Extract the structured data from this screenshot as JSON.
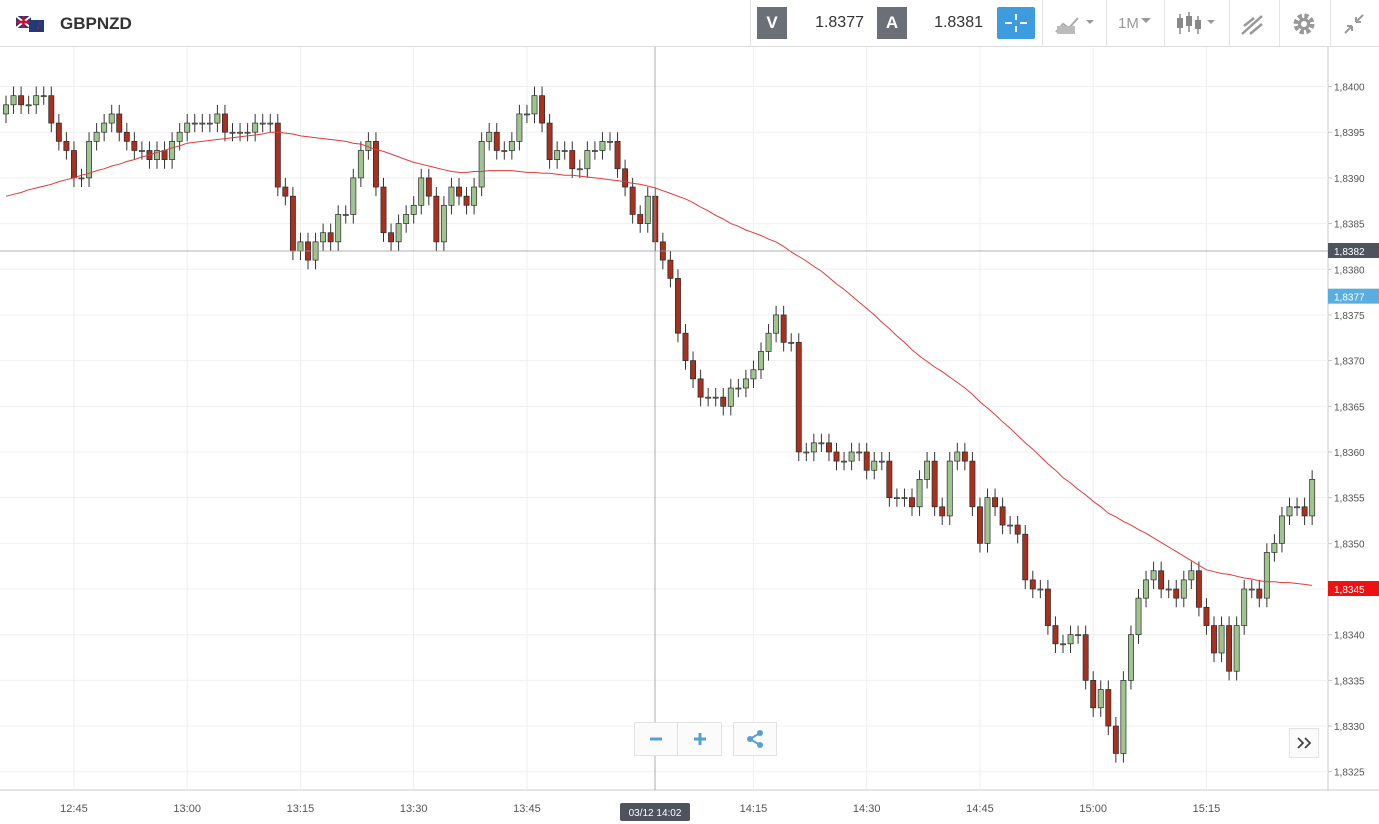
{
  "header": {
    "symbol": "GBPNZD",
    "bid_label": "V",
    "bid": 1.8377,
    "ask_label": "A",
    "ask": 1.8381,
    "timeframe": "1M"
  },
  "chart_data": {
    "type": "candlestick",
    "categories": [
      null,
      null,
      null,
      null,
      null,
      null,
      null,
      null,
      null,
      "12:45",
      null,
      null,
      null,
      null,
      null,
      null,
      null,
      null,
      null,
      null,
      null,
      null,
      null,
      null,
      "13:00",
      null,
      null,
      null,
      null,
      null,
      null,
      null,
      null,
      null,
      null,
      null,
      null,
      null,
      null,
      "13:15",
      null,
      null,
      null,
      null,
      null,
      null,
      null,
      null,
      null,
      null,
      null,
      null,
      null,
      null,
      "13:30",
      null,
      null,
      null,
      null,
      null,
      null,
      null,
      null,
      null,
      null,
      null,
      null,
      null,
      null,
      "13:45",
      null,
      null,
      null,
      null,
      null,
      null,
      null,
      null,
      null,
      null,
      null,
      null,
      null,
      null,
      null,
      null,
      null,
      null,
      null,
      null,
      null,
      null,
      null,
      null,
      null,
      null,
      null,
      null,
      null,
      "14:15",
      null,
      null,
      null,
      null,
      null,
      null,
      null,
      null,
      null,
      null,
      null,
      null,
      null,
      null,
      "14:30",
      null,
      null,
      null,
      null,
      null,
      null,
      null,
      null,
      null,
      null,
      null,
      null,
      null,
      null,
      "14:45",
      null,
      null,
      null,
      null,
      null,
      null,
      null,
      null,
      null,
      null,
      null,
      null,
      null,
      null,
      "15:00",
      null,
      null,
      null,
      null,
      null,
      null,
      null,
      null,
      null,
      null,
      null,
      null,
      null,
      null,
      "15:15",
      null,
      null,
      null,
      null,
      null,
      null,
      null,
      null,
      null,
      null,
      null,
      null,
      null,
      null
    ],
    "open": [
      1.8397,
      1.8398,
      1.8399,
      1.8398,
      1.8398,
      1.8399,
      1.8399,
      1.8396,
      1.8394,
      1.8393,
      1.839,
      1.839,
      1.8394,
      1.8395,
      1.8396,
      1.8397,
      1.8395,
      1.8394,
      1.8393,
      1.8393,
      1.8392,
      1.8393,
      1.8392,
      1.8394,
      1.8395,
      1.8396,
      1.8396,
      1.8396,
      1.8396,
      1.8397,
      1.8395,
      1.8395,
      1.8395,
      1.8395,
      1.8396,
      1.8396,
      1.8396,
      1.8389,
      1.8388,
      1.8382,
      1.8383,
      1.8381,
      1.8383,
      1.8384,
      1.8383,
      1.8386,
      1.8386,
      1.839,
      1.8393,
      1.8394,
      1.8389,
      1.8384,
      1.8383,
      1.8385,
      1.8386,
      1.8387,
      1.839,
      1.8388,
      1.8383,
      1.8387,
      1.8389,
      1.8388,
      1.8387,
      1.8389,
      1.8394,
      1.8395,
      1.8393,
      1.8393,
      1.8394,
      1.8397,
      1.8397,
      1.8399,
      1.8396,
      1.8392,
      1.8393,
      1.8393,
      1.8391,
      1.8391,
      1.8393,
      1.8393,
      1.8394,
      1.8394,
      1.8391,
      1.8389,
      1.8386,
      1.8385,
      1.8388,
      1.8383,
      1.8381,
      1.8379,
      1.8373,
      1.837,
      1.8368,
      1.8366,
      1.8366,
      1.8366,
      1.8365,
      1.8367,
      1.8367,
      1.8368,
      1.8369,
      1.8371,
      1.8373,
      1.8375,
      1.8372,
      1.8372,
      1.836,
      1.836,
      1.8361,
      1.8361,
      1.836,
      1.8359,
      1.8359,
      1.836,
      1.836,
      1.8358,
      1.8359,
      1.8359,
      1.8355,
      1.8355,
      1.8355,
      1.8354,
      1.8357,
      1.8359,
      1.8354,
      1.8353,
      1.8359,
      1.836,
      1.8359,
      1.8354,
      1.835,
      1.8355,
      1.8354,
      1.8352,
      1.8352,
      1.8351,
      1.8346,
      1.8345,
      1.8345,
      1.8341,
      1.8339,
      1.8339,
      1.834,
      1.834,
      1.8335,
      1.8332,
      1.8334,
      1.833,
      1.8327,
      1.8335,
      1.834,
      1.8344,
      1.8346,
      1.8347,
      1.8345,
      1.8345,
      1.8344,
      1.8346,
      1.8347,
      1.8343,
      1.8341,
      1.8338,
      1.8341,
      1.8336,
      1.8341,
      1.8345,
      1.8345,
      1.8344,
      1.8349,
      1.835,
      1.8353,
      1.8354,
      1.8354,
      1.8353
    ],
    "high": [
      1.8399,
      1.84,
      1.84,
      1.8399,
      1.84,
      1.84,
      1.84,
      1.8397,
      1.8395,
      1.8394,
      1.8391,
      1.8395,
      1.8396,
      1.8397,
      1.8398,
      1.8398,
      1.8396,
      1.8395,
      1.8394,
      1.8394,
      1.8394,
      1.8394,
      1.8395,
      1.8396,
      1.8397,
      1.8397,
      1.8397,
      1.8397,
      1.8398,
      1.8398,
      1.8396,
      1.8396,
      1.8396,
      1.8397,
      1.8397,
      1.8397,
      1.8397,
      1.839,
      1.8389,
      1.8384,
      1.8384,
      1.8384,
      1.8385,
      1.8385,
      1.8387,
      1.8387,
      1.8391,
      1.8394,
      1.8395,
      1.8395,
      1.839,
      1.8385,
      1.8386,
      1.8387,
      1.8388,
      1.8391,
      1.8391,
      1.8389,
      1.8388,
      1.839,
      1.839,
      1.8389,
      1.839,
      1.8395,
      1.8396,
      1.8396,
      1.8394,
      1.8395,
      1.8398,
      1.8398,
      1.84,
      1.84,
      1.8397,
      1.8394,
      1.8394,
      1.8394,
      1.8392,
      1.8394,
      1.8394,
      1.8395,
      1.8395,
      1.8395,
      1.8392,
      1.839,
      1.8387,
      1.8389,
      1.8389,
      1.8384,
      1.8382,
      1.838,
      1.8374,
      1.8371,
      1.8369,
      1.8367,
      1.8367,
      1.8367,
      1.8368,
      1.8368,
      1.8369,
      1.837,
      1.8372,
      1.8374,
      1.8376,
      1.8376,
      1.8373,
      1.8373,
      1.8361,
      1.8362,
      1.8362,
      1.8362,
      1.8361,
      1.836,
      1.8361,
      1.8361,
      1.8361,
      1.836,
      1.836,
      1.836,
      1.8356,
      1.8356,
      1.8356,
      1.8358,
      1.836,
      1.836,
      1.8355,
      1.836,
      1.8361,
      1.8361,
      1.836,
      1.8355,
      1.8356,
      1.8356,
      1.8355,
      1.8353,
      1.8353,
      1.8352,
      1.8347,
      1.8346,
      1.8346,
      1.8342,
      1.834,
      1.8341,
      1.8341,
      1.8341,
      1.8336,
      1.8335,
      1.8335,
      1.8331,
      1.8336,
      1.8341,
      1.8345,
      1.8347,
      1.8348,
      1.8348,
      1.8346,
      1.8346,
      1.8347,
      1.8348,
      1.8348,
      1.8344,
      1.8342,
      1.8342,
      1.8342,
      1.8342,
      1.8346,
      1.8346,
      1.8346,
      1.835,
      1.8351,
      1.8354,
      1.8355,
      1.8355,
      1.8355,
      1.8358
    ],
    "low": [
      1.8396,
      1.8397,
      1.8397,
      1.8397,
      1.8397,
      1.8398,
      1.8395,
      1.8393,
      1.8392,
      1.8389,
      1.8389,
      1.8389,
      1.8393,
      1.8394,
      1.8395,
      1.8394,
      1.8393,
      1.8392,
      1.8392,
      1.8391,
      1.8391,
      1.8391,
      1.8391,
      1.8393,
      1.8394,
      1.8395,
      1.8395,
      1.8395,
      1.8395,
      1.8394,
      1.8394,
      1.8394,
      1.8394,
      1.8394,
      1.8395,
      1.8395,
      1.8388,
      1.8387,
      1.8381,
      1.8381,
      1.838,
      1.838,
      1.8382,
      1.8382,
      1.8382,
      1.8385,
      1.8385,
      1.8389,
      1.8392,
      1.8388,
      1.8383,
      1.8382,
      1.8382,
      1.8384,
      1.8385,
      1.8386,
      1.8387,
      1.8382,
      1.8382,
      1.8386,
      1.8387,
      1.8386,
      1.8386,
      1.8388,
      1.8393,
      1.8392,
      1.8392,
      1.8392,
      1.8393,
      1.8396,
      1.8396,
      1.8395,
      1.8391,
      1.8391,
      1.8392,
      1.839,
      1.839,
      1.839,
      1.8392,
      1.8392,
      1.8393,
      1.839,
      1.8388,
      1.8385,
      1.8384,
      1.8384,
      1.8382,
      1.838,
      1.8378,
      1.8372,
      1.8369,
      1.8367,
      1.8365,
      1.8365,
      1.8365,
      1.8364,
      1.8364,
      1.8366,
      1.8366,
      1.8367,
      1.8368,
      1.837,
      1.8372,
      1.8371,
      1.8371,
      1.8359,
      1.8359,
      1.8359,
      1.836,
      1.8359,
      1.8358,
      1.8358,
      1.8358,
      1.8359,
      1.8357,
      1.8357,
      1.8358,
      1.8354,
      1.8354,
      1.8354,
      1.8353,
      1.8353,
      1.8356,
      1.8353,
      1.8352,
      1.8352,
      1.8358,
      1.8358,
      1.8353,
      1.8349,
      1.8349,
      1.8353,
      1.8351,
      1.8351,
      1.835,
      1.8345,
      1.8344,
      1.8344,
      1.834,
      1.8338,
      1.8338,
      1.8338,
      1.8339,
      1.8334,
      1.8331,
      1.8331,
      1.8329,
      1.8326,
      1.8326,
      1.8334,
      1.8339,
      1.8343,
      1.8345,
      1.8344,
      1.8344,
      1.8343,
      1.8343,
      1.8345,
      1.8342,
      1.834,
      1.8337,
      1.8337,
      1.8335,
      1.8335,
      1.834,
      1.8344,
      1.8343,
      1.8343,
      1.8348,
      1.8349,
      1.8352,
      1.8353,
      1.8352,
      1.8352
    ],
    "close": [
      1.8398,
      1.8399,
      1.8398,
      1.8398,
      1.8399,
      1.8399,
      1.8396,
      1.8394,
      1.8393,
      1.839,
      1.839,
      1.8394,
      1.8395,
      1.8396,
      1.8397,
      1.8395,
      1.8394,
      1.8393,
      1.8393,
      1.8392,
      1.8393,
      1.8392,
      1.8394,
      1.8395,
      1.8396,
      1.8396,
      1.8396,
      1.8396,
      1.8397,
      1.8395,
      1.8395,
      1.8395,
      1.8395,
      1.8396,
      1.8396,
      1.8396,
      1.8389,
      1.8388,
      1.8382,
      1.8383,
      1.8381,
      1.8383,
      1.8384,
      1.8383,
      1.8386,
      1.8386,
      1.839,
      1.8393,
      1.8394,
      1.8389,
      1.8384,
      1.8383,
      1.8385,
      1.8386,
      1.8387,
      1.839,
      1.8388,
      1.8383,
      1.8387,
      1.8389,
      1.8388,
      1.8387,
      1.8389,
      1.8394,
      1.8395,
      1.8393,
      1.8393,
      1.8394,
      1.8397,
      1.8397,
      1.8399,
      1.8396,
      1.8392,
      1.8393,
      1.8393,
      1.8391,
      1.8391,
      1.8393,
      1.8393,
      1.8394,
      1.8394,
      1.8391,
      1.8389,
      1.8386,
      1.8385,
      1.8388,
      1.8383,
      1.8381,
      1.8379,
      1.8373,
      1.837,
      1.8368,
      1.8366,
      1.8366,
      1.8366,
      1.8365,
      1.8367,
      1.8367,
      1.8368,
      1.8369,
      1.8371,
      1.8373,
      1.8375,
      1.8372,
      1.8372,
      1.836,
      1.836,
      1.8361,
      1.8361,
      1.836,
      1.8359,
      1.8359,
      1.836,
      1.836,
      1.8358,
      1.8359,
      1.8359,
      1.8355,
      1.8355,
      1.8355,
      1.8354,
      1.8357,
      1.8359,
      1.8354,
      1.8353,
      1.8359,
      1.836,
      1.8359,
      1.8354,
      1.835,
      1.8355,
      1.8354,
      1.8352,
      1.8352,
      1.8351,
      1.8346,
      1.8345,
      1.8345,
      1.8341,
      1.8339,
      1.8339,
      1.834,
      1.834,
      1.8335,
      1.8332,
      1.8334,
      1.833,
      1.8327,
      1.8335,
      1.834,
      1.8344,
      1.8346,
      1.8347,
      1.8345,
      1.8345,
      1.8344,
      1.8346,
      1.8347,
      1.8343,
      1.8341,
      1.8338,
      1.8341,
      1.8336,
      1.8341,
      1.8345,
      1.8345,
      1.8344,
      1.8349,
      1.835,
      1.8353,
      1.8354,
      1.8354,
      1.8353,
      1.8357
    ],
    "up_color": "#9fc48f",
    "down_color": "#a8301f",
    "ma": {
      "color": "#e03a3a",
      "values": [
        1.8388,
        1.83882,
        1.83884,
        1.83887,
        1.83889,
        1.83891,
        1.83893,
        1.83896,
        1.83898,
        1.839,
        1.83903,
        1.83905,
        1.83908,
        1.8391,
        1.83913,
        1.83915,
        1.83918,
        1.8392,
        1.83923,
        1.83925,
        1.83928,
        1.8393,
        1.83933,
        1.83935,
        1.83938,
        1.83939,
        1.8394,
        1.83941,
        1.83942,
        1.83943,
        1.83944,
        1.83945,
        1.83946,
        1.83947,
        1.83948,
        1.8395,
        1.8395,
        1.83949,
        1.83948,
        1.83946,
        1.83945,
        1.83944,
        1.83943,
        1.83942,
        1.83941,
        1.8394,
        1.83938,
        1.83937,
        1.83934,
        1.83931,
        1.83929,
        1.83926,
        1.83923,
        1.8392,
        1.83917,
        1.83915,
        1.83913,
        1.83911,
        1.83909,
        1.83907,
        1.83906,
        1.83906,
        1.83907,
        1.83907,
        1.83908,
        1.83908,
        1.83908,
        1.83908,
        1.83907,
        1.83906,
        1.83906,
        1.83905,
        1.83905,
        1.83904,
        1.83903,
        1.83903,
        1.83902,
        1.83901,
        1.839,
        1.83899,
        1.83898,
        1.83897,
        1.83896,
        1.83894,
        1.83893,
        1.83891,
        1.83889,
        1.83886,
        1.83883,
        1.8388,
        1.83877,
        1.83873,
        1.83868,
        1.83864,
        1.83859,
        1.83855,
        1.8385,
        1.83847,
        1.83843,
        1.8384,
        1.83837,
        1.83833,
        1.8383,
        1.83825,
        1.83819,
        1.83814,
        1.83809,
        1.83803,
        1.83798,
        1.83791,
        1.83784,
        1.83778,
        1.83771,
        1.83764,
        1.83757,
        1.8375,
        1.83742,
        1.83735,
        1.83727,
        1.8372,
        1.83712,
        1.83705,
        1.83699,
        1.83693,
        1.83688,
        1.83682,
        1.83676,
        1.8367,
        1.83663,
        1.83655,
        1.83648,
        1.83641,
        1.83633,
        1.83626,
        1.83618,
        1.8361,
        1.83603,
        1.83595,
        1.83587,
        1.8358,
        1.83572,
        1.83566,
        1.83559,
        1.83553,
        1.83546,
        1.8354,
        1.83533,
        1.83529,
        1.83524,
        1.8352,
        1.83515,
        1.83511,
        1.83506,
        1.83501,
        1.83496,
        1.83491,
        1.83486,
        1.83481,
        1.83476,
        1.83471,
        1.83469,
        1.83467,
        1.83466,
        1.83464,
        1.83462,
        1.83461,
        1.83459,
        1.83458,
        1.83458,
        1.83457,
        1.83457,
        1.83456,
        1.83455,
        1.83454
      ]
    },
    "ylim": [
      1.8323,
      1.8404
    ],
    "yticks": [
      {
        "value": 1.8325,
        "label": "1,8325"
      },
      {
        "value": 1.833,
        "label": "1,8330"
      },
      {
        "value": 1.8335,
        "label": "1,8335"
      },
      {
        "value": 1.834,
        "label": "1,8340"
      },
      {
        "value": 1.8345,
        "label": "1,8345"
      },
      {
        "value": 1.835,
        "label": "1,8350"
      },
      {
        "value": 1.8355,
        "label": "1,8355"
      },
      {
        "value": 1.836,
        "label": "1,8360"
      },
      {
        "value": 1.8365,
        "label": "1,8365"
      },
      {
        "value": 1.837,
        "label": "1,8370"
      },
      {
        "value": 1.8375,
        "label": "1,8375"
      },
      {
        "value": 1.838,
        "label": "1,8380"
      },
      {
        "value": 1.8385,
        "label": "1,8385"
      },
      {
        "value": 1.839,
        "label": "1,8390"
      },
      {
        "value": 1.8395,
        "label": "1,8395"
      },
      {
        "value": 1.84,
        "label": "1,8400"
      }
    ],
    "grid": true,
    "price_tags": [
      {
        "value": 1.8377,
        "label": "1,8377",
        "color": "#5aaedf"
      },
      {
        "value": 1.8345,
        "label": "1,8345",
        "color": "#ee1111"
      }
    ],
    "crosshair": {
      "y": {
        "value": 1.8382,
        "label": "1,8382"
      },
      "x_label": "03/12 14:02"
    }
  }
}
